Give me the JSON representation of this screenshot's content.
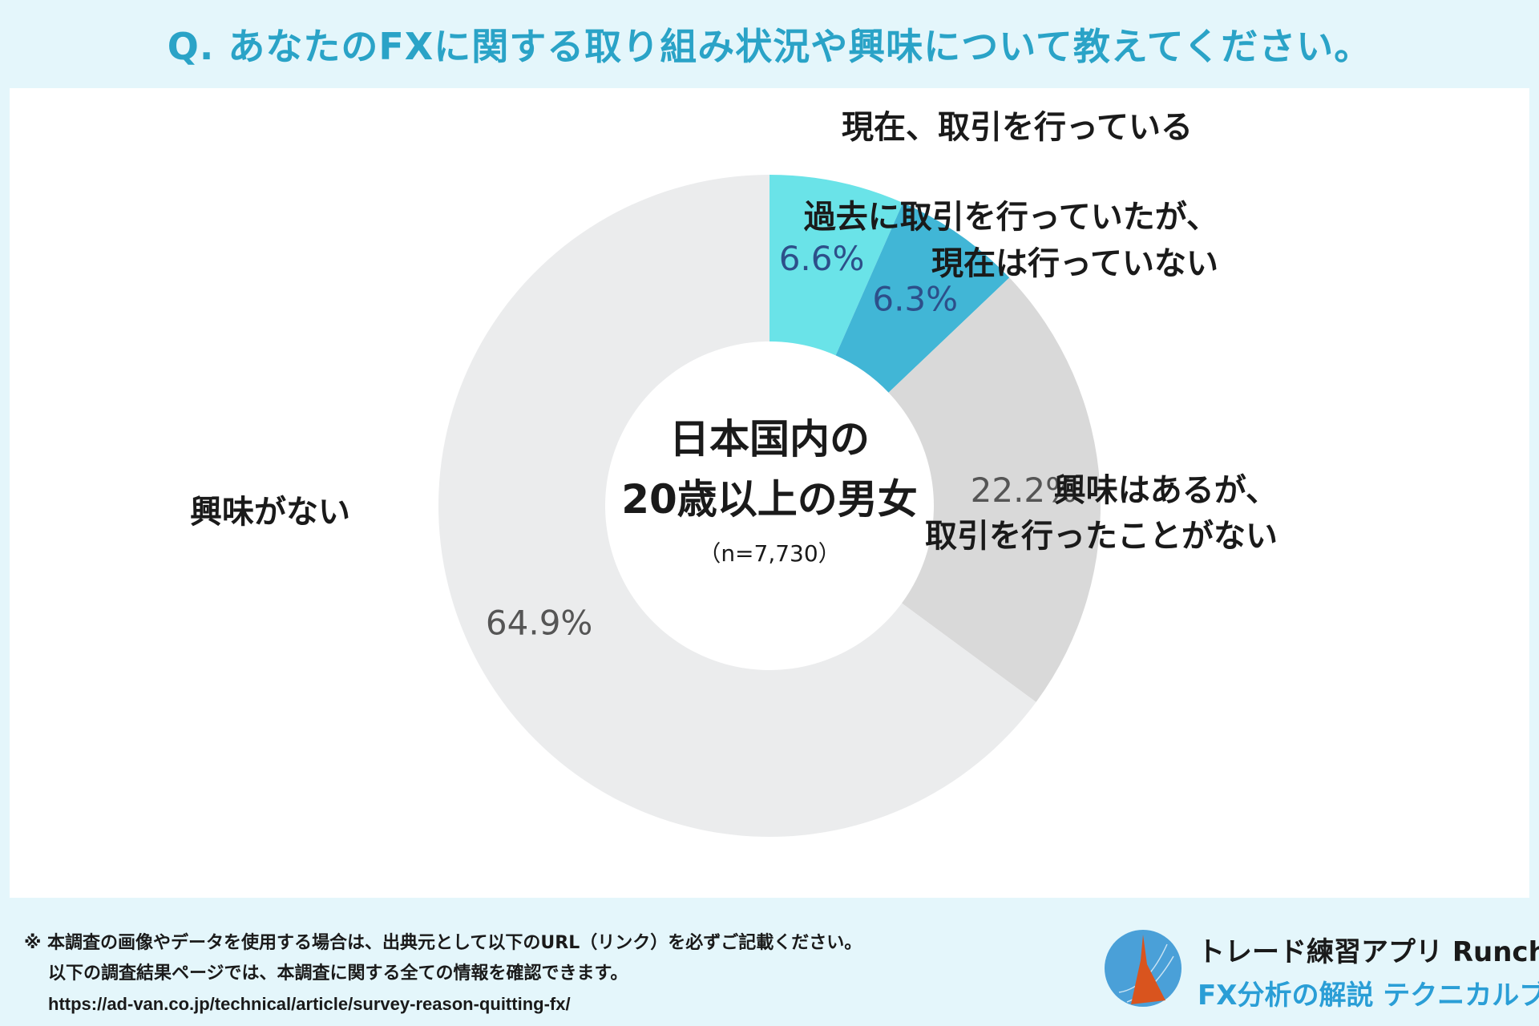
{
  "question": "Q. あなたのFXに関する取り組み状況や興味について教えてください。",
  "chart_data": {
    "type": "pie",
    "variant": "donut",
    "title": "Q. あなたのFXに関する取り組み状況や興味について教えてください。",
    "center_label": [
      "日本国内の",
      "20歳以上の男女"
    ],
    "center_note": "（n=7,730）",
    "slices": [
      {
        "label": [
          "現在、取引を行っている"
        ],
        "value": 6.6,
        "display": "6.6%",
        "color": "#6ae3e8",
        "value_color": "#2d4f8a"
      },
      {
        "label": [
          "過去に取引を行っていたが、",
          "現在は行っていない"
        ],
        "value": 6.3,
        "display": "6.3%",
        "color": "#41b6d6",
        "value_color": "#2d4f8a"
      },
      {
        "label": [
          "興味はあるが、",
          "取引を行ったことがない"
        ],
        "value": 22.2,
        "display": "22.2%",
        "color": "#d9d9d9",
        "value_color": "#555555"
      },
      {
        "label": [
          "興味がない"
        ],
        "value": 64.9,
        "display": "64.9%",
        "color": "#ebeced",
        "value_color": "#555555"
      }
    ]
  },
  "footer": {
    "note_line1": "※ 本調査の画像やデータを使用する場合は、出典元として以下のURL（リンク）を必ずご記載ください。",
    "note_line2": "以下の調査結果ページでは、本調査に関する全ての情報を確認できます。",
    "url": "https://ad-van.co.jp/technical/article/survey-reason-quitting-fx/"
  },
  "brand": {
    "app_name": "トレード練習アプリ  Runcha",
    "book_name": "FX分析の解説  テクニカルブック",
    "logo_colors": {
      "circle": "#4aa0d8",
      "flame": "#d9541e"
    }
  }
}
